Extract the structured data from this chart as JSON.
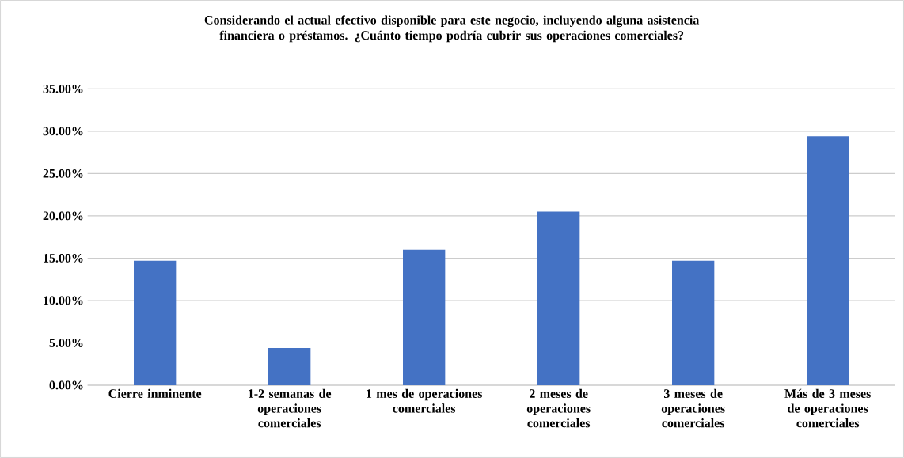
{
  "chart_data": {
    "type": "bar",
    "title": "Considerando el actual efectivo disponible para este negocio, incluyendo alguna asistencia financiera o préstamos. ¿Cuánto tiempo podría cubrir sus operaciones comerciales?",
    "categories": [
      "Cierre inminente",
      "1-2 semanas de operaciones comerciales",
      "1 mes de operaciones comerciales",
      "2 meses de operaciones comerciales",
      "3 meses de operaciones comerciales",
      "Más de 3 meses de operaciones comerciales"
    ],
    "values": [
      14.7,
      4.4,
      16.0,
      20.5,
      14.7,
      29.4
    ],
    "color": "#4472c4",
    "ylim": [
      0,
      35
    ],
    "yticks": [
      {
        "value": 0,
        "label": "0.00%"
      },
      {
        "value": 5,
        "label": "5.00%"
      },
      {
        "value": 10,
        "label": "10.00%"
      },
      {
        "value": 15,
        "label": "15.00%"
      },
      {
        "value": 20,
        "label": "20.00%"
      },
      {
        "value": 25,
        "label": "25.00%"
      },
      {
        "value": 30,
        "label": "30.00%"
      },
      {
        "value": 35,
        "label": "35.00%"
      }
    ],
    "grid": "y"
  }
}
